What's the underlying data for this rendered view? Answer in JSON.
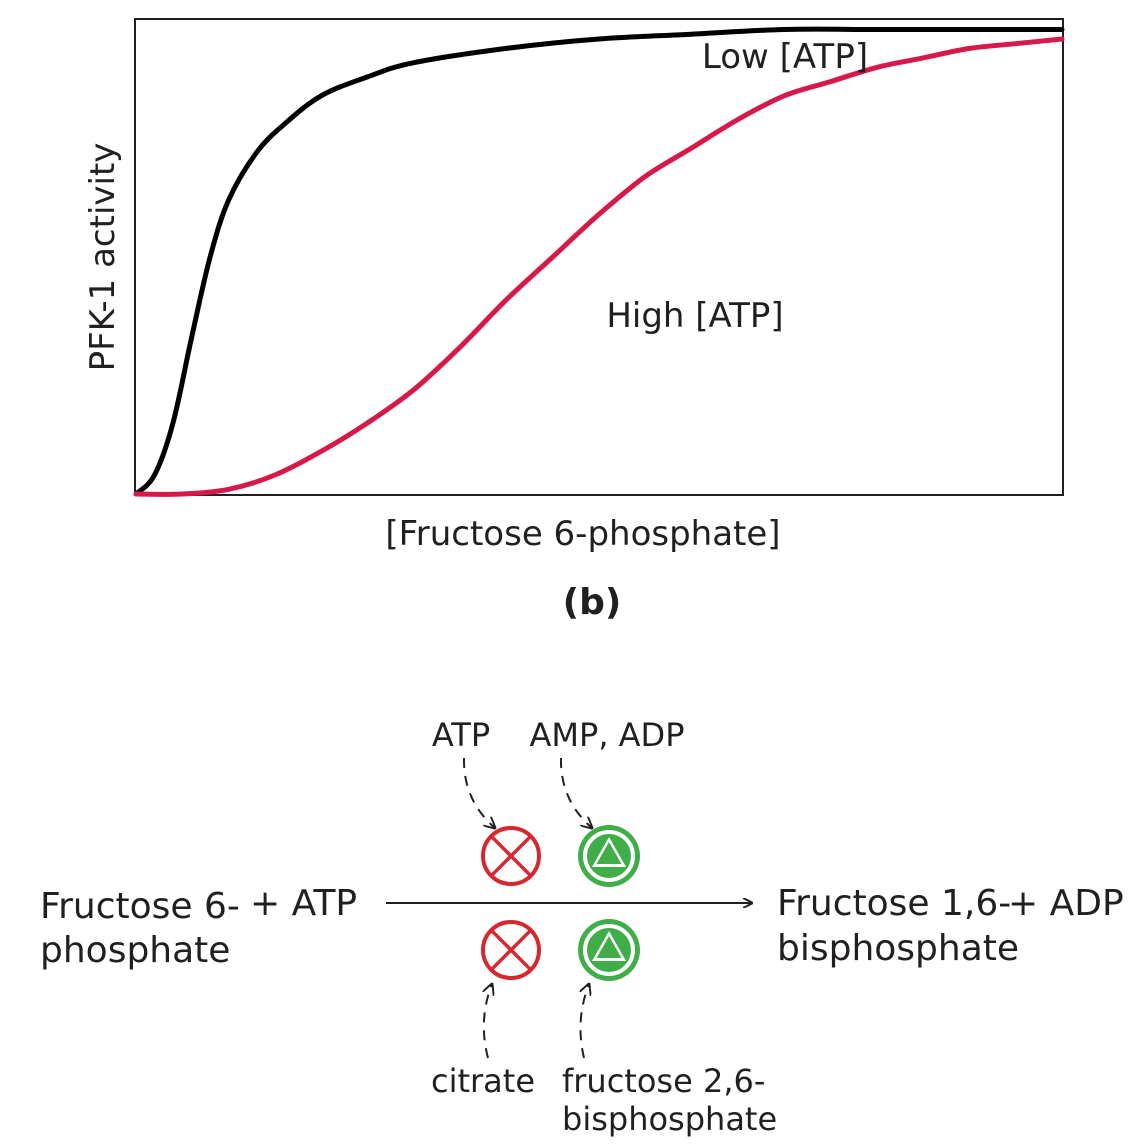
{
  "chart_data": {
    "type": "line",
    "ylabel": "PFK-1 activity",
    "xlabel": "[Fructose 6-phosphate]",
    "caption": "(b)",
    "xlim": [
      0,
      1
    ],
    "ylim": [
      0,
      1
    ],
    "grid": false,
    "series": [
      {
        "name": "Low [ATP]",
        "color": "#000000",
        "x": [
          0,
          0.02,
          0.04,
          0.06,
          0.08,
          0.1,
          0.13,
          0.16,
          0.2,
          0.25,
          0.3,
          0.4,
          0.5,
          0.6,
          0.7,
          0.8,
          0.9,
          1.0
        ],
        "y": [
          0,
          0.04,
          0.15,
          0.33,
          0.5,
          0.62,
          0.72,
          0.78,
          0.84,
          0.88,
          0.91,
          0.94,
          0.96,
          0.97,
          0.98,
          0.98,
          0.98,
          0.98
        ]
      },
      {
        "name": "High [ATP]",
        "color": "#d7194a",
        "x": [
          0,
          0.05,
          0.1,
          0.15,
          0.2,
          0.25,
          0.3,
          0.35,
          0.4,
          0.45,
          0.5,
          0.55,
          0.6,
          0.65,
          0.7,
          0.75,
          0.8,
          0.85,
          0.9,
          0.95,
          1.0
        ],
        "y": [
          0,
          0,
          0.01,
          0.04,
          0.09,
          0.15,
          0.22,
          0.31,
          0.41,
          0.5,
          0.59,
          0.67,
          0.73,
          0.79,
          0.84,
          0.87,
          0.9,
          0.92,
          0.94,
          0.95,
          0.96
        ]
      }
    ]
  },
  "reaction": {
    "substrate_line1": "Fructose 6-",
    "substrate_line2": "phosphate",
    "plus_atp": "+ ATP",
    "product_line1": "Fructose 1,6-",
    "product_line2": "bisphosphate",
    "plus_adp": "+ ADP",
    "inhibitor_top": "ATP",
    "activator_top": "AMP, ADP",
    "inhibitor_bottom": "citrate",
    "activator_bottom_line1": "fructose 2,6-",
    "activator_bottom_line2": "bisphosphate",
    "inhibit_color": "#d7282f",
    "activate_color": "#3fae49"
  }
}
